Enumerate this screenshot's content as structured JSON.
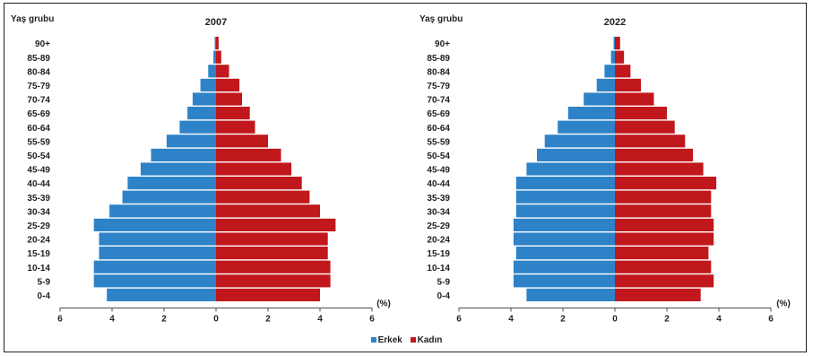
{
  "colors": {
    "male": "#2e83c8",
    "female": "#c0181c"
  },
  "legend": {
    "male": "Erkek",
    "female": "Kadın"
  },
  "chart_data": [
    {
      "type": "bar",
      "title": "2007",
      "ylabel": "Yaş grubu",
      "unit_label": "(%)",
      "xlim": [
        -6,
        6
      ],
      "xticks": [
        "6",
        "4",
        "2",
        "0",
        "2",
        "4",
        "6"
      ],
      "categories": [
        "0-4",
        "5-9",
        "10-14",
        "15-19",
        "20-24",
        "25-29",
        "30-34",
        "35-39",
        "40-44",
        "45-49",
        "50-54",
        "55-59",
        "60-64",
        "65-69",
        "70-74",
        "75-79",
        "80-84",
        "85-89",
        "90+"
      ],
      "series": [
        {
          "name": "Erkek",
          "values": [
            4.2,
            4.7,
            4.7,
            4.5,
            4.5,
            4.7,
            4.1,
            3.6,
            3.4,
            2.9,
            2.5,
            1.9,
            1.4,
            1.1,
            0.9,
            0.6,
            0.3,
            0.1,
            0.05
          ]
        },
        {
          "name": "Kadın",
          "values": [
            4.0,
            4.4,
            4.4,
            4.3,
            4.3,
            4.6,
            4.0,
            3.6,
            3.3,
            2.9,
            2.5,
            2.0,
            1.5,
            1.3,
            1.0,
            0.9,
            0.5,
            0.2,
            0.1
          ]
        }
      ]
    },
    {
      "type": "bar",
      "title": "2022",
      "ylabel": "Yaş grubu",
      "unit_label": "(%)",
      "xlim": [
        -6,
        6
      ],
      "xticks": [
        "6",
        "4",
        "2",
        "0",
        "2",
        "4",
        "6"
      ],
      "categories": [
        "0-4",
        "5-9",
        "10-14",
        "15-19",
        "20-24",
        "25-29",
        "30-34",
        "35-39",
        "40-44",
        "45-49",
        "50-54",
        "55-59",
        "60-64",
        "65-69",
        "70-74",
        "75-79",
        "80-84",
        "85-89",
        "90+"
      ],
      "series": [
        {
          "name": "Erkek",
          "values": [
            3.4,
            3.9,
            3.9,
            3.8,
            3.9,
            3.9,
            3.8,
            3.8,
            3.8,
            3.4,
            3.0,
            2.7,
            2.2,
            1.8,
            1.2,
            0.7,
            0.4,
            0.15,
            0.05
          ]
        },
        {
          "name": "Kadın",
          "values": [
            3.3,
            3.8,
            3.7,
            3.6,
            3.8,
            3.8,
            3.7,
            3.7,
            3.9,
            3.4,
            3.0,
            2.7,
            2.3,
            2.0,
            1.5,
            1.0,
            0.6,
            0.35,
            0.2
          ]
        }
      ]
    }
  ]
}
